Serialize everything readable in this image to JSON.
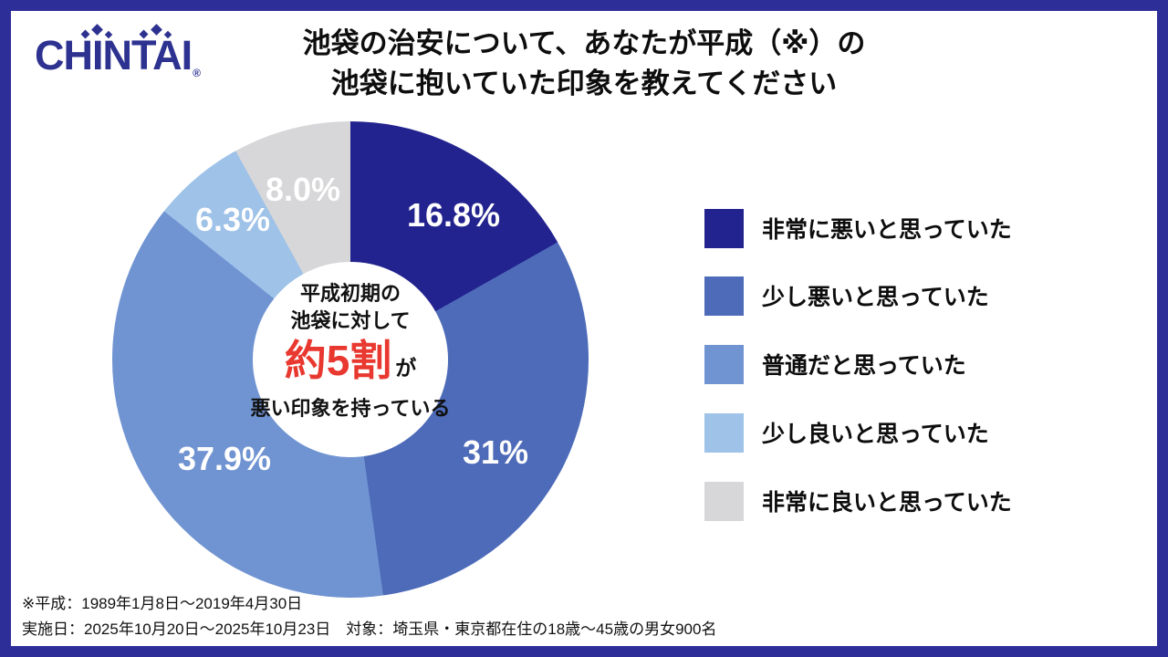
{
  "brand": {
    "logo_text": "CHINTAI",
    "registered_mark": "®"
  },
  "title": {
    "line1": "池袋の治安について、あなたが平成（※）の",
    "line2": "池袋に抱いていた印象を教えてください"
  },
  "chart_data": {
    "type": "pie",
    "style": "donut",
    "unit": "%",
    "start_angle_deg": 0,
    "direction": "clockwise",
    "segments": [
      {
        "legend": "非常に悪いと思っていた",
        "label": "16.8%",
        "value": 16.8,
        "color": "#23238F"
      },
      {
        "legend": "少し悪いと思っていた",
        "label": "31%",
        "value": 31,
        "color": "#4D6BB8"
      },
      {
        "legend": "普通だと思っていた",
        "label": "37.9%",
        "value": 37.9,
        "color": "#7094D2"
      },
      {
        "legend": "少し良いと思っていた",
        "label": "6.3%",
        "value": 6.3,
        "color": "#9EC2E8"
      },
      {
        "legend": "非常に良いと思っていた",
        "label": "8.0%",
        "value": 8.0,
        "color": "#D7D7D9"
      }
    ],
    "center_annotation": {
      "line1": "平成初期の",
      "line2": "池袋に対して",
      "highlight": "約5割",
      "highlight_suffix": "が",
      "line3": "悪い印象を持っている",
      "highlight_color": "#E8382F"
    },
    "legend_position": "right"
  },
  "footnote": {
    "line1": "※平成：1989年1月8日～2019年4月30日",
    "line2": "実施日：2025年10月20日～2025年10月23日　対象：埼玉県・東京都在住の18歳～45歳の男女900名"
  },
  "colors": {
    "frame": "#2E2E99",
    "logo": "#2D3190",
    "text": "#111111",
    "slice_label": "#FFFFFF"
  }
}
